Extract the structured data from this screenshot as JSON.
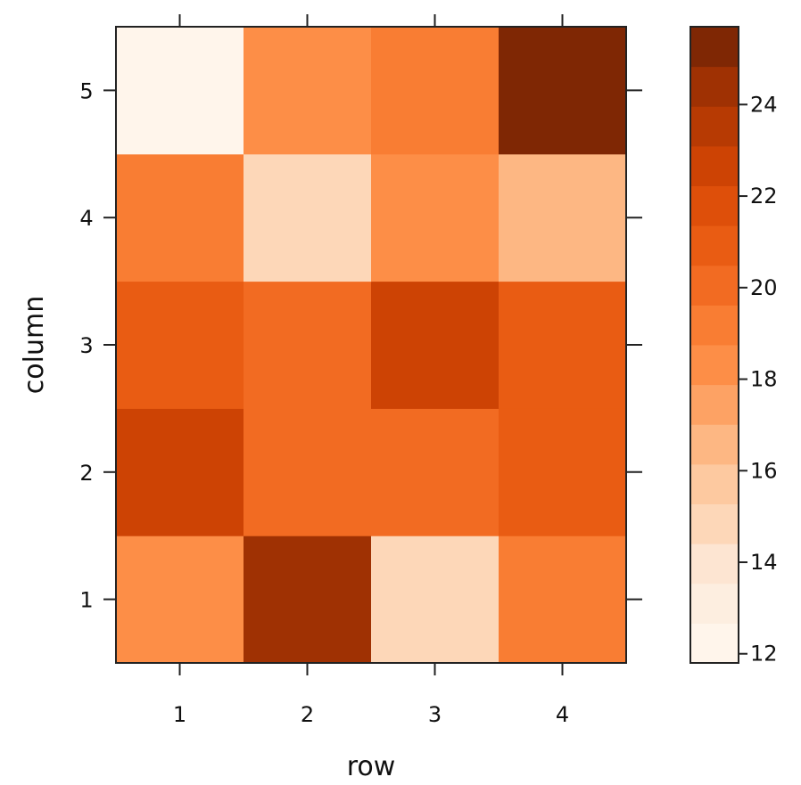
{
  "chart_data": {
    "type": "heatmap",
    "xlabel": "row",
    "ylabel": "column",
    "x_categories": [
      "1",
      "2",
      "3",
      "4"
    ],
    "y_categories": [
      "1",
      "2",
      "3",
      "4",
      "5"
    ],
    "values": [
      [
        18,
        24.5,
        14.5,
        19
      ],
      [
        22.5,
        20,
        20,
        21
      ],
      [
        21,
        20,
        23,
        21
      ],
      [
        19,
        14.5,
        18.5,
        16.5
      ],
      [
        12,
        18.5,
        19.5,
        25
      ]
    ],
    "colorbar": {
      "range": [
        11.8,
        25.7
      ],
      "ticks": [
        12,
        14,
        16,
        18,
        20,
        22,
        24
      ],
      "tick_labels": [
        "12",
        "14",
        "16",
        "18",
        "20",
        "22",
        "24"
      ],
      "colors": [
        "#fff5eb",
        "#fdeee0",
        "#fde5d2",
        "#fdd7b8",
        "#fdc9a0",
        "#fdb783",
        "#fda264",
        "#fd8e47",
        "#f97d33",
        "#f26b22",
        "#e95c13",
        "#de4f0a",
        "#cd4304",
        "#b73a03",
        "#9f3103",
        "#7f2704"
      ]
    },
    "grid": false,
    "legend": "right"
  }
}
